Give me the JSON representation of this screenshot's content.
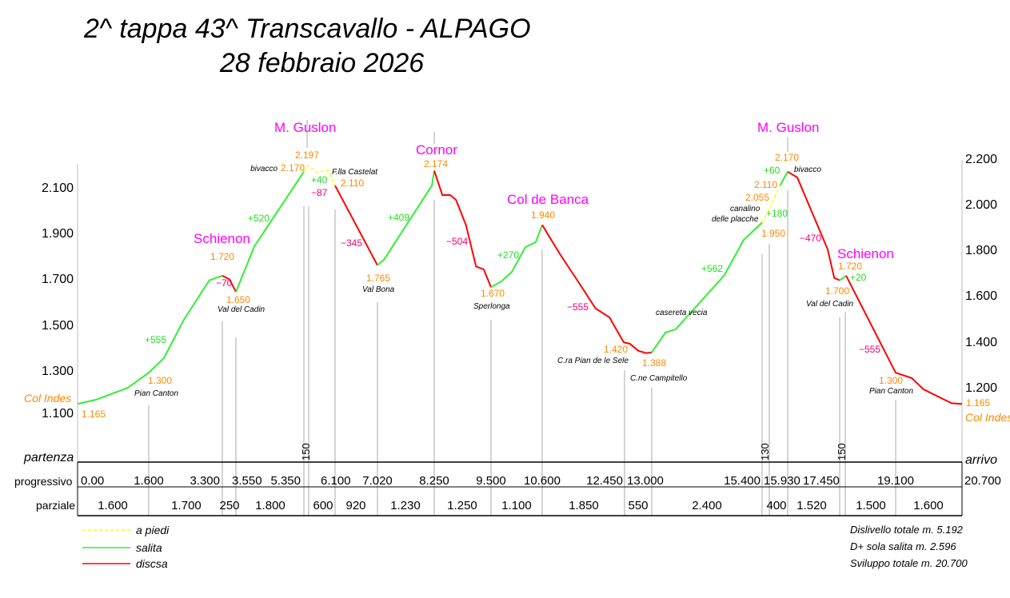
{
  "chart_data": {
    "type": "line",
    "title": "2^ tappa 43^ Transcavallo - ALPAGO",
    "subtitle": "28 febbraio 2026",
    "colors": {
      "walk": "#ffff00",
      "climb": "#33ee33",
      "descent": "#ff0000",
      "elevation_label": "#ff8800",
      "peak_label": "#ff00ff",
      "loss_label": "#ee0077",
      "gain_label": "#22dd22"
    },
    "y_axis_left": {
      "ticks": [
        "2.100",
        "1.900",
        "1.700",
        "1.500",
        "1.300",
        "1.100"
      ],
      "values": [
        2100,
        1900,
        1700,
        1500,
        1300,
        1100
      ]
    },
    "y_axis_right": {
      "ticks": [
        "2.200",
        "2.000",
        "1.800",
        "1.600",
        "1.400",
        "1.200"
      ],
      "values": [
        2200,
        2000,
        1800,
        1600,
        1400,
        1200
      ]
    },
    "ylim": [
      1100,
      2200
    ],
    "xlim": [
      0,
      20.7
    ],
    "segments": [
      {
        "type": "climb",
        "points": [
          [
            0,
            1165
          ],
          [
            0.41,
            1183
          ],
          [
            1.13,
            1235
          ],
          [
            1.6,
            1300
          ],
          [
            1.95,
            1363
          ],
          [
            2.41,
            1529
          ],
          [
            3.0,
            1700
          ],
          [
            3.3,
            1720
          ]
        ]
      },
      {
        "type": "descent",
        "points": [
          [
            3.3,
            1720
          ],
          [
            3.43,
            1705
          ],
          [
            3.55,
            1650
          ]
        ]
      },
      {
        "type": "climb",
        "points": [
          [
            3.55,
            1650
          ],
          [
            4.04,
            1847
          ],
          [
            5.35,
            2170
          ]
        ]
      },
      {
        "type": "walk",
        "points": [
          [
            5.35,
            2170
          ],
          [
            5.45,
            2197
          ],
          [
            5.64,
            2169
          ],
          [
            5.93,
            2176
          ],
          [
            6.1,
            2110
          ]
        ]
      },
      {
        "type": "descent",
        "points": [
          [
            6.1,
            2110
          ],
          [
            7.02,
            1765
          ]
        ]
      },
      {
        "type": "climb",
        "points": [
          [
            7.02,
            1765
          ],
          [
            7.16,
            1789
          ],
          [
            8.2,
            2110
          ],
          [
            8.25,
            2174
          ]
        ]
      },
      {
        "type": "descent",
        "points": [
          [
            8.25,
            2174
          ],
          [
            8.43,
            2069
          ],
          [
            8.6,
            2069
          ],
          [
            8.73,
            2048
          ],
          [
            8.95,
            1938
          ],
          [
            9.17,
            1760
          ],
          [
            9.34,
            1747
          ],
          [
            9.5,
            1670
          ]
        ]
      },
      {
        "type": "climb",
        "points": [
          [
            9.5,
            1670
          ],
          [
            9.72,
            1695
          ],
          [
            9.95,
            1737
          ],
          [
            10.24,
            1844
          ],
          [
            10.46,
            1865
          ],
          [
            10.6,
            1940
          ]
        ]
      },
      {
        "type": "descent",
        "points": [
          [
            10.6,
            1940
          ],
          [
            11.0,
            1813
          ],
          [
            11.44,
            1685
          ],
          [
            11.8,
            1578
          ],
          [
            12.11,
            1540
          ],
          [
            12.43,
            1432
          ],
          [
            12.56,
            1425
          ],
          [
            12.73,
            1395
          ],
          [
            12.89,
            1385
          ],
          [
            13.0,
            1388
          ]
        ]
      },
      {
        "type": "climb",
        "points": [
          [
            13.0,
            1388
          ],
          [
            13.3,
            1474
          ],
          [
            13.52,
            1488
          ],
          [
            14.57,
            1720
          ],
          [
            15.0,
            1875
          ],
          [
            15.4,
            1950
          ]
        ]
      },
      {
        "type": "walk",
        "points": [
          [
            15.4,
            1950
          ],
          [
            15.55,
            2007
          ],
          [
            15.65,
            2055
          ],
          [
            15.77,
            2110
          ]
        ]
      },
      {
        "type": "climb",
        "points": [
          [
            15.77,
            2110
          ],
          [
            15.93,
            2170
          ]
        ]
      },
      {
        "type": "descent",
        "points": [
          [
            15.93,
            2170
          ],
          [
            16.21,
            2145
          ],
          [
            17.1,
            1834
          ],
          [
            17.29,
            1710
          ],
          [
            17.45,
            1700
          ]
        ]
      },
      {
        "type": "climb",
        "points": [
          [
            17.45,
            1700
          ],
          [
            17.64,
            1720
          ]
        ]
      },
      {
        "type": "descent",
        "points": [
          [
            17.64,
            1720
          ],
          [
            19.1,
            1300
          ],
          [
            19.49,
            1277
          ],
          [
            19.77,
            1228
          ],
          [
            20.45,
            1168
          ],
          [
            20.7,
            1165
          ]
        ]
      }
    ],
    "peak_labels": [
      "M. Guslon",
      "Schienon",
      "Cornor",
      "Col de Banca",
      "M. Guslon",
      "Schienon"
    ],
    "elevation_labels": [
      "2.197",
      "2.170",
      "2.110",
      "1.720",
      "1.650",
      "1.765",
      "2.174",
      "1.670",
      "1.940",
      "1.420",
      "1.388",
      "2.170",
      "2.110",
      "2.055",
      "1.950",
      "1.720",
      "1.700",
      "1.300",
      "1.165",
      "1.300",
      "1.165"
    ],
    "place_labels": [
      "bivacco",
      "F.lla Castelat",
      "Val del Cadin",
      "Val Bona",
      "Sperlonga",
      "C.ra Pian de le Sele",
      "C.ne Campitello",
      "casereta    vecia",
      "canalino",
      "delle placche",
      "bivacco",
      "Val del Cadin",
      "Pian Canton",
      "Pian Canton"
    ],
    "gain_labels": [
      "+555",
      "+520",
      "+40",
      "+409",
      "+270",
      "+562",
      "+60",
      "+180",
      "+20"
    ],
    "loss_labels": [
      "−70",
      "−87",
      "−345",
      "−504",
      "−555",
      "−470",
      "−555"
    ],
    "endpoints": [
      "Col Indes",
      "Col Indes"
    ],
    "short_segment_labels": [
      "150",
      "130",
      "150"
    ],
    "table": {
      "start_label": "partenza",
      "end_label": "arrivo",
      "progressive_label": "progressivo",
      "partial_label": "parziale",
      "progressive": [
        "0.00",
        "1.600",
        "3.300",
        "3.550",
        "5.350",
        "6.100",
        "7.020",
        "8.250",
        "9.500",
        "10.600",
        "12.450",
        "13.000",
        "15.400",
        "15.930",
        "17.450",
        "19.100",
        "20.700"
      ],
      "partial": [
        "1.600",
        "1.700",
        "250",
        "1.800",
        "600",
        "920",
        "1.230",
        "1.250",
        "1.100",
        "1.850",
        "550",
        "2.400",
        "400",
        "1.520",
        "1.500",
        "1.600"
      ]
    },
    "legend": [
      {
        "label": "a piedi",
        "type": "walk"
      },
      {
        "label": "salita",
        "type": "climb"
      },
      {
        "label": "discsa",
        "type": "descent"
      }
    ],
    "stats": [
      "Dislivello totale m. 5.192",
      "D+ sola salita   m. 2.596",
      "Sviluppo totale m. 20.700"
    ]
  }
}
